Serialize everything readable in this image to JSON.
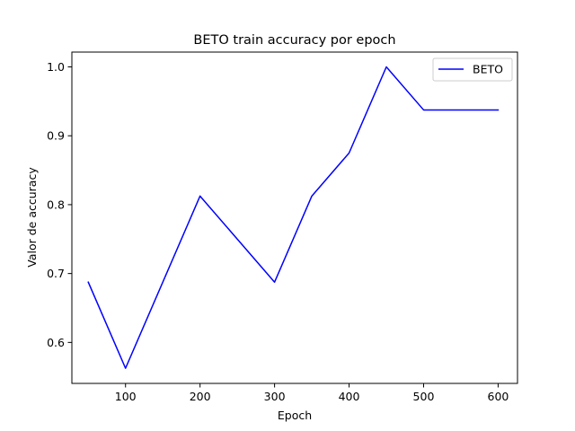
{
  "chart_data": {
    "type": "line",
    "title": "BETO train accuracy por epoch",
    "xlabel": "Epoch",
    "ylabel": "Valor de accuracy",
    "xlim": [
      28,
      626
    ],
    "ylim": [
      0.5405,
      1.0215
    ],
    "xticks": [
      100,
      200,
      300,
      400,
      500,
      600
    ],
    "yticks": [
      0.6,
      0.7,
      0.8,
      0.9,
      1.0
    ],
    "xtick_labels": [
      "100",
      "200",
      "300",
      "400",
      "500",
      "600"
    ],
    "ytick_labels": [
      "0.6",
      "0.7",
      "0.8",
      "0.9",
      "1.0"
    ],
    "grid": false,
    "legend_position": "top-right",
    "series": [
      {
        "name": "BETO",
        "color": "#0000ff",
        "x": [
          50,
          100,
          200,
          300,
          350,
          400,
          450,
          500,
          550,
          600
        ],
        "y": [
          0.6875,
          0.5625,
          0.8125,
          0.6875,
          0.8125,
          0.875,
          1.0,
          0.9375,
          0.9375,
          0.9375
        ]
      }
    ]
  }
}
